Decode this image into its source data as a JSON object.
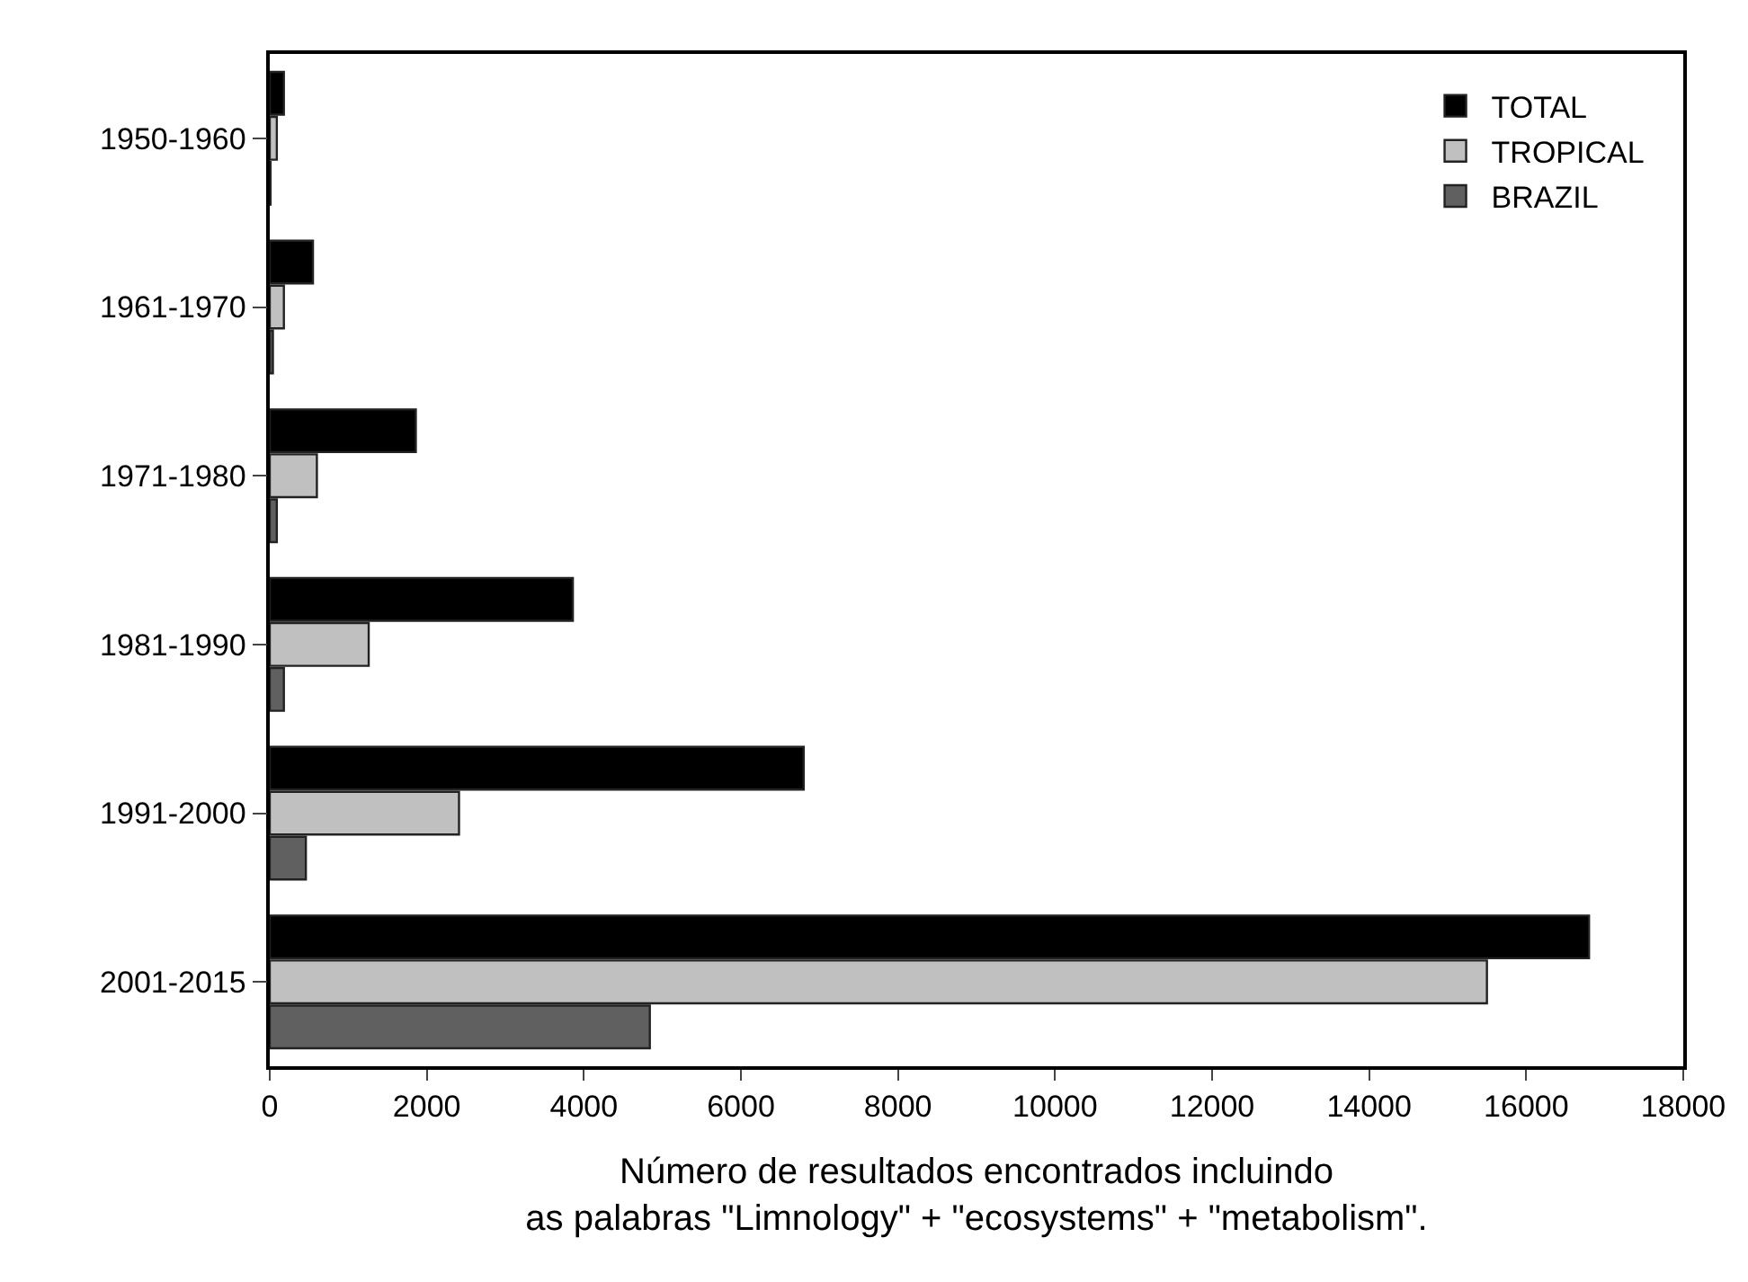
{
  "chart_data": {
    "type": "bar",
    "orientation": "horizontal",
    "categories": [
      "1950-1960",
      "1961-1970",
      "1971-1980",
      "1981-1990",
      "1991-2000",
      "2001-2015"
    ],
    "series": [
      {
        "name": "TOTAL",
        "color": "#000000",
        "values": [
          180,
          550,
          1860,
          3860,
          6800,
          16800
        ]
      },
      {
        "name": "TROPICAL",
        "color": "#c0c0c0",
        "values": [
          90,
          180,
          600,
          1260,
          2410,
          15500
        ]
      },
      {
        "name": "BRAZIL",
        "color": "#606060",
        "values": [
          10,
          40,
          90,
          180,
          460,
          4840
        ]
      }
    ],
    "xlabel": "Número de resultados encontrados incluindo\nas palabras \"Limnology\" + \"ecosystems\" + \"metabolism\".",
    "xlim": [
      0,
      18000
    ],
    "xticks": [
      0,
      2000,
      4000,
      6000,
      8000,
      10000,
      12000,
      14000,
      16000,
      18000
    ],
    "legend": "top right"
  }
}
